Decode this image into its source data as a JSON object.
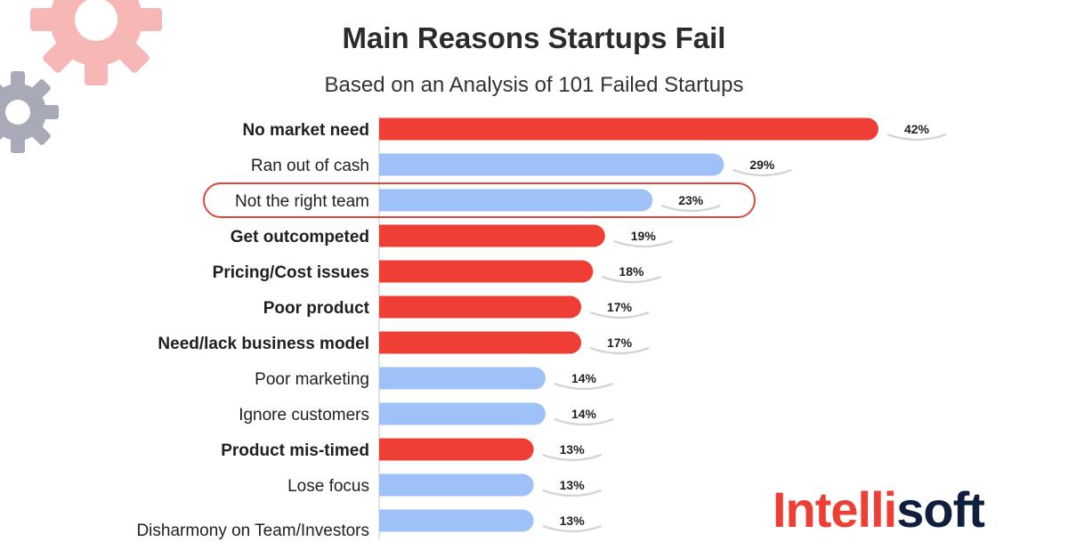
{
  "colors": {
    "red": "#ef3e36",
    "blue": "#9ec1f7",
    "highlight_outline": "#d9483b",
    "gear_pink": "#f7b7b7",
    "gear_gray": "#a9aab8"
  },
  "logo": {
    "part1": "Intelli",
    "part2": "soft"
  },
  "chart_data": {
    "type": "bar",
    "orientation": "horizontal",
    "title": "Main Reasons Startups Fail",
    "subtitle": "Based on an Analysis of 101 Failed Startups",
    "categories": [
      "No market need",
      "Ran out of cash",
      "Not the right team",
      "Get outcompeted",
      "Pricing/Cost issues",
      "Poor product",
      "Need/lack business model",
      "Poor marketing",
      "Ignore customers",
      "Product mis-timed",
      "Lose focus",
      "Disharmony on Team/Investors"
    ],
    "values": [
      42,
      29,
      23,
      19,
      18,
      17,
      17,
      14,
      14,
      13,
      13,
      13
    ],
    "value_labels": [
      "42%",
      "29%",
      "23%",
      "19%",
      "18%",
      "17%",
      "17%",
      "14%",
      "14%",
      "13%",
      "13%",
      "13%"
    ],
    "bar_colors": [
      "red",
      "blue",
      "blue",
      "red",
      "red",
      "red",
      "red",
      "blue",
      "blue",
      "red",
      "blue",
      "blue"
    ],
    "bold_labels": [
      true,
      false,
      false,
      true,
      true,
      true,
      true,
      false,
      false,
      true,
      false,
      false
    ],
    "highlighted": "Not the right team",
    "xlim": [
      0,
      42
    ],
    "grid": false,
    "legend": "none"
  }
}
